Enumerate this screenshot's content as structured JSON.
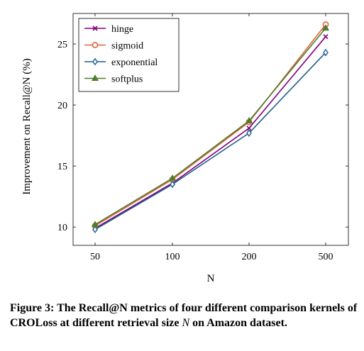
{
  "chart_data": {
    "type": "line",
    "categories": [
      "50",
      "100",
      "200",
      "500"
    ],
    "xlabel": "N",
    "ylabel": "Improvement on Recall@N (%)",
    "ylim": [
      8.5,
      27.5
    ],
    "yticks": [
      10,
      15,
      20,
      25
    ],
    "grid": false,
    "legend_position": "top-left",
    "series": [
      {
        "name": "hinge",
        "color": "#800080",
        "marker": "x",
        "values": [
          9.9,
          13.6,
          18.1,
          25.6
        ]
      },
      {
        "name": "sigmoid",
        "color": "#e0633a",
        "marker": "circle",
        "values": [
          10.1,
          13.9,
          18.6,
          26.6
        ]
      },
      {
        "name": "exponential",
        "color": "#1f5f8b",
        "marker": "diamond",
        "values": [
          9.8,
          13.5,
          17.7,
          24.3
        ]
      },
      {
        "name": "softplus",
        "color": "#4a7f2c",
        "marker": "triangle",
        "values": [
          10.2,
          14.0,
          18.7,
          26.3
        ]
      }
    ]
  },
  "caption": {
    "prefix": "Figure 3: The Recall@N metrics of four different comparison kernels of CROLoss at different retrieval size ",
    "variable": "N",
    "suffix": " on Amazon dataset."
  }
}
